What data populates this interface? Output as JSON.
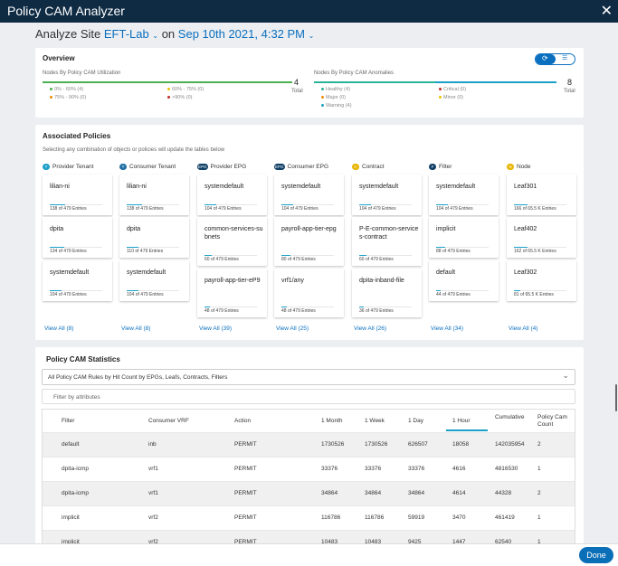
{
  "title": "Policy CAM Analyzer",
  "analyze": {
    "prefix": "Analyze Site",
    "site": "EFT-Lab",
    "on": "on",
    "date": "Sep 10th 2021, 4:32 PM"
  },
  "overview": {
    "title": "Overview",
    "util": {
      "label": "Nodes By Policy CAM Utilization",
      "total": "4",
      "total_label": "Total",
      "legend": [
        "0% - 60% (4)",
        "60% - 75% (0)",
        "75% - 90% (0)",
        ">90% (0)"
      ]
    },
    "anom": {
      "label": "Nodes By Policy CAM Anomalies",
      "total": "8",
      "total_label": "Total",
      "legend": [
        "Healthy (4)",
        "Critical (0)",
        "Major (0)",
        "Minor (0)",
        "Warning (4)"
      ]
    }
  },
  "assoc": {
    "title": "Associated Policies",
    "subtitle": "Selecting any combination of objects or policies will update the tables below",
    "columns": [
      {
        "badge": "T",
        "label": "Provider Tenant",
        "color": "#1aa0c8",
        "view_all": "View All (8)",
        "cards": [
          {
            "name": "lilian-ni",
            "entries": "138 of 479 Entries"
          },
          {
            "name": "dpita",
            "entries": "134 of 479 Entries"
          },
          {
            "name": "systemdefault",
            "entries": "104 of 479 Entries"
          }
        ]
      },
      {
        "badge": "T",
        "label": "Consumer Tenant",
        "color": "#1f6fa6",
        "view_all": "View All (8)",
        "cards": [
          {
            "name": "lilian-ni",
            "entries": "138 of 479 Entries"
          },
          {
            "name": "dpita",
            "entries": "110 of 479 Entries"
          },
          {
            "name": "systemdefault",
            "entries": "104 of 479 Entries"
          }
        ]
      },
      {
        "badge": "EPG",
        "label": "Provider EPG",
        "color": "#0f3f66",
        "view_all": "View All (39)",
        "cards": [
          {
            "name": "systemdefault",
            "entries": "104 of 479 Entries"
          },
          {
            "name": "common-services-subnets",
            "entries": "60 of 479 Entries"
          },
          {
            "name": "payroll-app-tier-eP9",
            "entries": "48 of 479 Entries"
          }
        ]
      },
      {
        "badge": "EPG",
        "label": "Consumer EPG",
        "color": "#0f3f66",
        "view_all": "View All (25)",
        "cards": [
          {
            "name": "systemdefault",
            "entries": "104 of 479 Entries"
          },
          {
            "name": "payroll-app-tier-epg",
            "entries": "80 of 479 Entries"
          },
          {
            "name": "vrf1/any",
            "entries": "48 of 479 Entries"
          }
        ]
      },
      {
        "badge": "C",
        "label": "Contract",
        "color": "#e8b400",
        "view_all": "View All (26)",
        "cards": [
          {
            "name": "systemdefault",
            "entries": "104 of 479 Entries"
          },
          {
            "name": "P-E-common-services-contract",
            "entries": "60 of 479 Entries"
          },
          {
            "name": "dpita-inband-file",
            "entries": "36 of 479 Entries"
          }
        ]
      },
      {
        "badge": "F",
        "label": "Filter",
        "color": "#0f3f66",
        "view_all": "View All (34)",
        "cards": [
          {
            "name": "systemdefault",
            "entries": "104 of 479 Entries"
          },
          {
            "name": "implicit",
            "entries": "88 of 479 Entries"
          },
          {
            "name": "default",
            "entries": "44 of 479 Entries"
          }
        ]
      },
      {
        "badge": "N",
        "label": "Node",
        "color": "#e8b400",
        "view_all": "View All (4)",
        "cards": [
          {
            "name": "Leaf301",
            "entries": "166 of 65.5 K Entries"
          },
          {
            "name": "Leaf402",
            "entries": "162 of 65.5 K Entries"
          },
          {
            "name": "Leaf302",
            "entries": "81 of 65.5 K Entries"
          }
        ]
      }
    ]
  },
  "stats": {
    "title": "Policy CAM Statistics",
    "select": "All Policy CAM Rules by Hit Count by EPGs, Leafs, Contracts, Filters",
    "filter_placeholder": "Filter by attributes",
    "headers": [
      "Filter",
      "Consumer VRF",
      "Action",
      "1 Month",
      "1 Week",
      "1 Day",
      "1 Hour",
      "Cumulative",
      "Policy Cam Count"
    ],
    "rows": [
      [
        "default",
        "inb",
        "PERMIT",
        "1730526",
        "1730526",
        "626507",
        "18058",
        "142035954",
        "2"
      ],
      [
        "dpita-icmp",
        "vrf1",
        "PERMIT",
        "33376",
        "33376",
        "33376",
        "4616",
        "4816530",
        "1"
      ],
      [
        "dpita-icmp",
        "vrf1",
        "PERMIT",
        "34864",
        "34864",
        "34864",
        "4614",
        "44328",
        "2"
      ],
      [
        "implicit",
        "vrf2",
        "PERMIT",
        "116786",
        "116786",
        "59919",
        "3470",
        "461419",
        "1"
      ],
      [
        "implicit",
        "vrf2",
        "PERMIT",
        "10483",
        "10483",
        "9425",
        "1447",
        "62540",
        "1"
      ]
    ]
  },
  "done": "Done"
}
